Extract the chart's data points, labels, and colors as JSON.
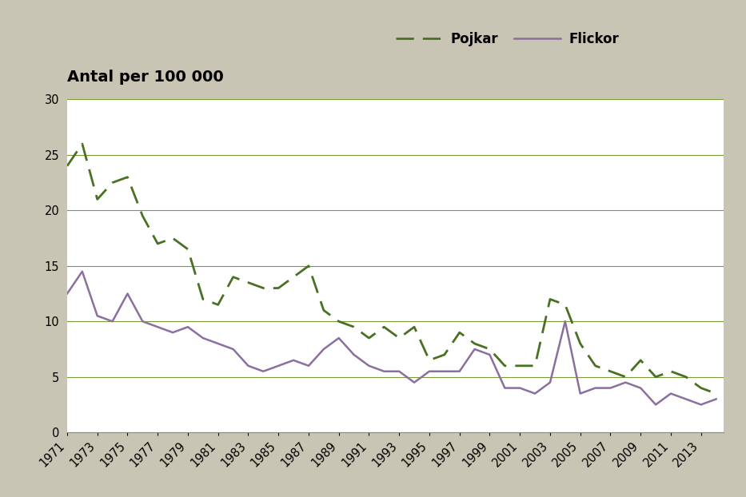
{
  "years": [
    1971,
    1972,
    1973,
    1974,
    1975,
    1976,
    1977,
    1978,
    1979,
    1980,
    1981,
    1982,
    1983,
    1984,
    1985,
    1986,
    1987,
    1988,
    1989,
    1990,
    1991,
    1992,
    1993,
    1994,
    1995,
    1996,
    1997,
    1998,
    1999,
    2000,
    2001,
    2002,
    2003,
    2004,
    2005,
    2006,
    2007,
    2008,
    2009,
    2010,
    2011,
    2012,
    2013,
    2014
  ],
  "pojkar": [
    24.0,
    26.0,
    21.0,
    22.5,
    23.0,
    19.5,
    17.0,
    17.5,
    16.5,
    12.0,
    11.5,
    14.0,
    13.5,
    13.0,
    13.0,
    14.0,
    15.0,
    11.0,
    10.0,
    9.5,
    8.5,
    9.5,
    8.5,
    9.5,
    6.5,
    7.0,
    9.0,
    8.0,
    7.5,
    6.0,
    6.0,
    6.0,
    12.0,
    11.5,
    8.0,
    6.0,
    5.5,
    5.0,
    6.5,
    5.0,
    5.5,
    5.0,
    4.0,
    3.5
  ],
  "flickor": [
    12.5,
    14.5,
    10.5,
    10.0,
    12.5,
    10.0,
    9.5,
    9.0,
    9.5,
    8.5,
    8.0,
    7.5,
    6.0,
    5.5,
    6.0,
    6.5,
    6.0,
    7.5,
    8.5,
    7.0,
    6.0,
    5.5,
    5.5,
    4.5,
    5.5,
    5.5,
    5.5,
    7.5,
    7.0,
    4.0,
    4.0,
    3.5,
    4.5,
    10.0,
    3.5,
    4.0,
    4.0,
    4.5,
    4.0,
    2.5,
    3.5,
    3.0,
    2.5,
    3.0
  ],
  "ylabel": "Antal per 100 000",
  "pojkar_label": "Pojkar",
  "flickor_label": "Flickor",
  "pojkar_color": "#4a7023",
  "flickor_color": "#8b6f9e",
  "background_color": "#c8c5b4",
  "plot_background": "#ffffff",
  "ylim": [
    0,
    30
  ],
  "yticks": [
    0,
    5,
    10,
    15,
    20,
    25,
    30
  ],
  "xtick_labels": [
    "1971",
    "1973",
    "1975",
    "1977",
    "1979",
    "1981",
    "1983",
    "1985",
    "1987",
    "1989",
    "1991",
    "1993",
    "1995",
    "1997",
    "1999",
    "2001",
    "2003",
    "2005",
    "2007",
    "2009",
    "2011",
    "2013"
  ],
  "xtick_positions": [
    1971,
    1973,
    1975,
    1977,
    1979,
    1981,
    1983,
    1985,
    1987,
    1989,
    1991,
    1993,
    1995,
    1997,
    1999,
    2001,
    2003,
    2005,
    2007,
    2009,
    2011,
    2013
  ],
  "grid_color": "#7a9a3a",
  "title_fontsize": 14,
  "legend_fontsize": 12,
  "tick_fontsize": 10.5
}
